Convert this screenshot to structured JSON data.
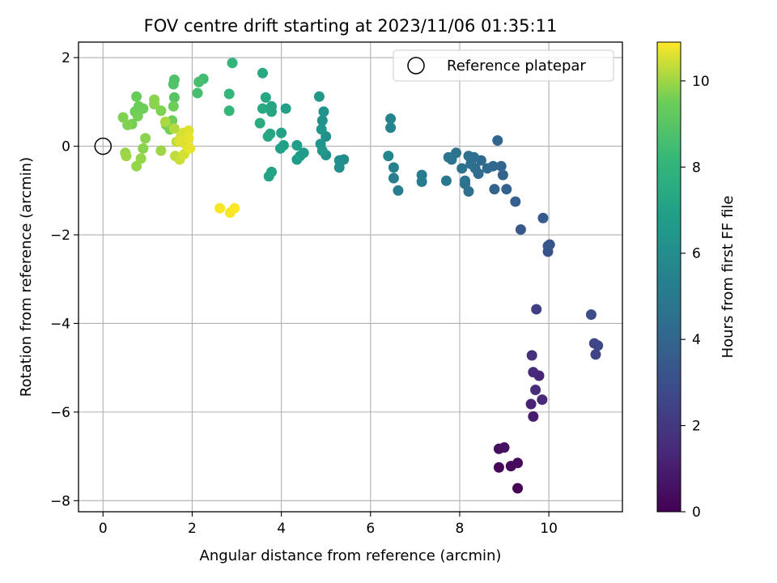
{
  "chart_data": {
    "type": "scatter",
    "title": "FOV centre drift starting at 2023/11/06 01:35:11",
    "xlabel": "Angular distance from reference (arcmin)",
    "ylabel": "Rotation from reference (arcmin)",
    "xlim": [
      -0.55,
      11.65
    ],
    "ylim": [
      -8.25,
      2.35
    ],
    "xticks": [
      0,
      2,
      4,
      6,
      8,
      10
    ],
    "xtick_labels": [
      "0",
      "2",
      "4",
      "6",
      "8",
      "10"
    ],
    "yticks": [
      -8,
      -6,
      -4,
      -2,
      0,
      2
    ],
    "ytick_labels": [
      "−8",
      "−6",
      "−4",
      "−2",
      "0",
      "2"
    ],
    "grid": true,
    "legend": {
      "position": "top-right",
      "entries": [
        {
          "label": "Reference platepar",
          "marker": "open-circle"
        }
      ]
    },
    "reference_point": {
      "x": 0,
      "y": 0
    },
    "colorbar": {
      "label": "Hours from first FF file",
      "min": 0,
      "max": 10.9,
      "ticks": [
        0,
        2,
        4,
        6,
        8,
        10
      ],
      "tick_labels": [
        "0",
        "2",
        "4",
        "6",
        "8",
        "10"
      ],
      "colormap": "viridis"
    },
    "points": [
      {
        "x": 9.3,
        "y": -7.72,
        "c": 0.05
      },
      {
        "x": 8.88,
        "y": -7.25,
        "c": 0.15
      },
      {
        "x": 9.15,
        "y": -7.22,
        "c": 0.25
      },
      {
        "x": 9.3,
        "y": -7.15,
        "c": 0.35
      },
      {
        "x": 8.88,
        "y": -6.83,
        "c": 0.45
      },
      {
        "x": 9.0,
        "y": -6.8,
        "c": 0.55
      },
      {
        "x": 9.65,
        "y": -6.1,
        "c": 1.0
      },
      {
        "x": 9.6,
        "y": -5.82,
        "c": 1.2
      },
      {
        "x": 9.85,
        "y": -5.72,
        "c": 1.4
      },
      {
        "x": 9.7,
        "y": -5.5,
        "c": 1.6
      },
      {
        "x": 9.78,
        "y": -5.18,
        "c": 1.3
      },
      {
        "x": 9.65,
        "y": -5.1,
        "c": 1.5
      },
      {
        "x": 9.62,
        "y": -4.72,
        "c": 1.7
      },
      {
        "x": 11.05,
        "y": -4.7,
        "c": 2.5
      },
      {
        "x": 11.1,
        "y": -4.5,
        "c": 2.7
      },
      {
        "x": 11.02,
        "y": -4.45,
        "c": 2.6
      },
      {
        "x": 10.95,
        "y": -3.8,
        "c": 2.9
      },
      {
        "x": 9.72,
        "y": -3.68,
        "c": 2.3
      },
      {
        "x": 9.98,
        "y": -2.38,
        "c": 3.1
      },
      {
        "x": 10.02,
        "y": -2.22,
        "c": 3.2
      },
      {
        "x": 9.98,
        "y": -2.25,
        "c": 3.3
      },
      {
        "x": 9.37,
        "y": -1.88,
        "c": 3.4
      },
      {
        "x": 9.87,
        "y": -1.62,
        "c": 3.5
      },
      {
        "x": 9.25,
        "y": -1.25,
        "c": 3.7
      },
      {
        "x": 9.05,
        "y": -0.97,
        "c": 3.8
      },
      {
        "x": 8.78,
        "y": -0.97,
        "c": 3.9
      },
      {
        "x": 8.97,
        "y": -0.65,
        "c": 3.9
      },
      {
        "x": 8.93,
        "y": -0.45,
        "c": 4.0
      },
      {
        "x": 8.75,
        "y": -0.45,
        "c": 4.1
      },
      {
        "x": 8.85,
        "y": 0.13,
        "c": 4.0
      },
      {
        "x": 8.62,
        "y": -0.5,
        "c": 4.2
      },
      {
        "x": 8.48,
        "y": -0.32,
        "c": 4.2
      },
      {
        "x": 8.42,
        "y": -0.62,
        "c": 4.3
      },
      {
        "x": 8.35,
        "y": -0.5,
        "c": 4.3
      },
      {
        "x": 8.32,
        "y": -0.25,
        "c": 4.4
      },
      {
        "x": 8.25,
        "y": -0.4,
        "c": 4.4
      },
      {
        "x": 8.2,
        "y": -0.22,
        "c": 4.5
      },
      {
        "x": 8.2,
        "y": -1.02,
        "c": 4.5
      },
      {
        "x": 8.12,
        "y": -0.85,
        "c": 4.6
      },
      {
        "x": 8.12,
        "y": -0.78,
        "c": 4.6
      },
      {
        "x": 8.05,
        "y": -0.5,
        "c": 4.7
      },
      {
        "x": 7.92,
        "y": -0.15,
        "c": 4.7
      },
      {
        "x": 7.82,
        "y": -0.3,
        "c": 4.8
      },
      {
        "x": 7.75,
        "y": -0.25,
        "c": 4.8
      },
      {
        "x": 7.7,
        "y": -0.78,
        "c": 4.9
      },
      {
        "x": 7.15,
        "y": -0.65,
        "c": 5.1
      },
      {
        "x": 7.15,
        "y": -0.8,
        "c": 5.1
      },
      {
        "x": 6.62,
        "y": -1.0,
        "c": 5.3
      },
      {
        "x": 6.52,
        "y": -0.72,
        "c": 5.3
      },
      {
        "x": 6.52,
        "y": -0.48,
        "c": 5.4
      },
      {
        "x": 6.45,
        "y": 0.62,
        "c": 5.5
      },
      {
        "x": 6.45,
        "y": 0.42,
        "c": 5.5
      },
      {
        "x": 6.4,
        "y": -0.22,
        "c": 5.6
      },
      {
        "x": 5.4,
        "y": -0.3,
        "c": 6.0
      },
      {
        "x": 5.3,
        "y": -0.32,
        "c": 6.1
      },
      {
        "x": 5.3,
        "y": -0.48,
        "c": 6.1
      },
      {
        "x": 5.0,
        "y": 0.22,
        "c": 6.2
      },
      {
        "x": 5.0,
        "y": -0.2,
        "c": 6.2
      },
      {
        "x": 4.95,
        "y": 0.78,
        "c": 6.3
      },
      {
        "x": 4.92,
        "y": 0.58,
        "c": 6.3
      },
      {
        "x": 4.9,
        "y": 0.38,
        "c": 6.4
      },
      {
        "x": 4.88,
        "y": 0.05,
        "c": 6.4
      },
      {
        "x": 4.92,
        "y": -0.1,
        "c": 6.5
      },
      {
        "x": 4.85,
        "y": 1.12,
        "c": 6.5
      },
      {
        "x": 4.5,
        "y": -0.15,
        "c": 6.7
      },
      {
        "x": 4.42,
        "y": -0.22,
        "c": 6.7
      },
      {
        "x": 4.35,
        "y": -0.3,
        "c": 6.8
      },
      {
        "x": 4.35,
        "y": 0.02,
        "c": 6.8
      },
      {
        "x": 4.1,
        "y": 0.85,
        "c": 7.0
      },
      {
        "x": 4.05,
        "y": 0.02,
        "c": 6.9
      },
      {
        "x": 4.0,
        "y": 0.3,
        "c": 7.0
      },
      {
        "x": 3.98,
        "y": -0.05,
        "c": 7.0
      },
      {
        "x": 3.78,
        "y": 0.9,
        "c": 7.2
      },
      {
        "x": 3.78,
        "y": 0.78,
        "c": 7.2
      },
      {
        "x": 3.78,
        "y": -0.58,
        "c": 7.1
      },
      {
        "x": 3.72,
        "y": -0.68,
        "c": 7.1
      },
      {
        "x": 3.75,
        "y": 0.28,
        "c": 7.2
      },
      {
        "x": 3.7,
        "y": 0.22,
        "c": 7.3
      },
      {
        "x": 3.65,
        "y": 1.1,
        "c": 7.3
      },
      {
        "x": 3.58,
        "y": 0.85,
        "c": 7.4
      },
      {
        "x": 3.58,
        "y": 1.65,
        "c": 7.4
      },
      {
        "x": 3.52,
        "y": 0.52,
        "c": 7.5
      },
      {
        "x": 2.9,
        "y": 1.88,
        "c": 8.0
      },
      {
        "x": 2.83,
        "y": 1.18,
        "c": 8.1
      },
      {
        "x": 2.83,
        "y": 0.8,
        "c": 8.1
      },
      {
        "x": 2.25,
        "y": 1.52,
        "c": 8.5
      },
      {
        "x": 2.15,
        "y": 1.45,
        "c": 8.6
      },
      {
        "x": 2.12,
        "y": 1.2,
        "c": 8.6
      },
      {
        "x": 1.6,
        "y": 1.5,
        "c": 8.8
      },
      {
        "x": 1.58,
        "y": 1.4,
        "c": 8.8
      },
      {
        "x": 1.6,
        "y": 1.1,
        "c": 9.0
      },
      {
        "x": 1.58,
        "y": 0.9,
        "c": 9.5
      },
      {
        "x": 1.55,
        "y": 0.58,
        "c": 9.5
      },
      {
        "x": 1.5,
        "y": 0.38,
        "c": 9.6
      },
      {
        "x": 1.42,
        "y": 0.48,
        "c": 9.6
      },
      {
        "x": 1.3,
        "y": 0.8,
        "c": 9.7
      },
      {
        "x": 1.15,
        "y": 1.05,
        "c": 9.8
      },
      {
        "x": 1.15,
        "y": 0.95,
        "c": 9.8
      },
      {
        "x": 0.9,
        "y": 0.85,
        "c": 9.5
      },
      {
        "x": 0.8,
        "y": 0.9,
        "c": 9.5
      },
      {
        "x": 0.75,
        "y": 1.12,
        "c": 9.4
      },
      {
        "x": 0.72,
        "y": 0.78,
        "c": 9.5
      },
      {
        "x": 0.78,
        "y": 0.68,
        "c": 9.6
      },
      {
        "x": 0.65,
        "y": 0.5,
        "c": 9.6
      },
      {
        "x": 0.55,
        "y": 0.48,
        "c": 9.7
      },
      {
        "x": 0.45,
        "y": 0.65,
        "c": 9.7
      },
      {
        "x": 0.95,
        "y": 0.18,
        "c": 9.8
      },
      {
        "x": 0.9,
        "y": -0.05,
        "c": 9.8
      },
      {
        "x": 0.85,
        "y": -0.28,
        "c": 9.9
      },
      {
        "x": 0.75,
        "y": -0.45,
        "c": 9.9
      },
      {
        "x": 0.5,
        "y": -0.15,
        "c": 9.9
      },
      {
        "x": 0.52,
        "y": -0.22,
        "c": 10.0
      },
      {
        "x": 1.3,
        "y": -0.1,
        "c": 10.0
      },
      {
        "x": 1.4,
        "y": 0.55,
        "c": 10.1
      },
      {
        "x": 1.6,
        "y": 0.4,
        "c": 10.2
      },
      {
        "x": 1.65,
        "y": 0.1,
        "c": 10.3
      },
      {
        "x": 1.62,
        "y": -0.22,
        "c": 10.3
      },
      {
        "x": 1.72,
        "y": -0.3,
        "c": 10.4
      },
      {
        "x": 1.75,
        "y": 0.22,
        "c": 10.4
      },
      {
        "x": 1.8,
        "y": 0.3,
        "c": 10.5
      },
      {
        "x": 1.82,
        "y": -0.18,
        "c": 10.5
      },
      {
        "x": 1.85,
        "y": 0.05,
        "c": 10.6
      },
      {
        "x": 1.92,
        "y": 0.35,
        "c": 10.6
      },
      {
        "x": 1.92,
        "y": 0.18,
        "c": 10.7
      },
      {
        "x": 1.95,
        "y": -0.05,
        "c": 10.7
      },
      {
        "x": 1.72,
        "y": 0.12,
        "c": 10.6
      },
      {
        "x": 2.62,
        "y": -1.4,
        "c": 10.85
      },
      {
        "x": 2.85,
        "y": -1.5,
        "c": 10.85
      },
      {
        "x": 2.95,
        "y": -1.4,
        "c": 10.9
      }
    ]
  }
}
